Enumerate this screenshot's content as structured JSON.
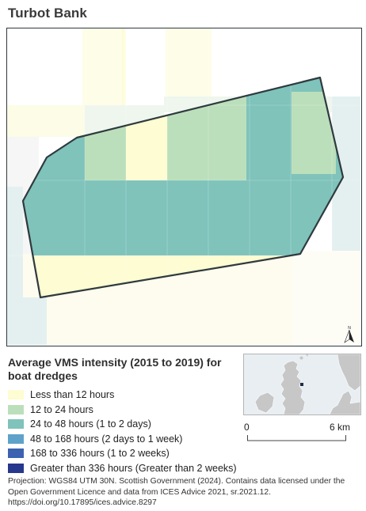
{
  "map": {
    "title": "Turbot Bank",
    "colors": {
      "less_than_12": "#fdfcd2",
      "h12_24": "#bcdfbb",
      "h24_48": "#7fc3bb",
      "h48_168": "#5ea2c9",
      "h168_336": "#3c62b0",
      "gt_336": "#26378e",
      "outside_light": "#e4f0f0",
      "boundary": "#2f3a3e"
    },
    "north_label": "N"
  },
  "legend": {
    "title": "Average VMS intensity (2015 to 2019) for boat dredges",
    "items": [
      {
        "label": "Less than 12 hours",
        "color": "#fdfcd2"
      },
      {
        "label": "12 to 24 hours",
        "color": "#bcdfbb"
      },
      {
        "label": "24 to 48 hours (1 to 2 days)",
        "color": "#7fc3bb"
      },
      {
        "label": "48 to 168 hours (2 days to 1 week)",
        "color": "#5ea2c9"
      },
      {
        "label": "168 to 336 hours (1 to 2 weeks)",
        "color": "#3c62b0"
      },
      {
        "label": "Greater than 336 hours (Greater than 2 weeks)",
        "color": "#26378e"
      }
    ]
  },
  "scale": {
    "start_label": "0",
    "end_label": "6 km"
  },
  "source_text": "Projection: WGS84 UTM 30N. Scottish Government (2024). Contains data licensed under the Open Government Licence and data from ICES Advice 2021, sr.2021.12. https://doi.org/10.17895/ices.advice.8297"
}
